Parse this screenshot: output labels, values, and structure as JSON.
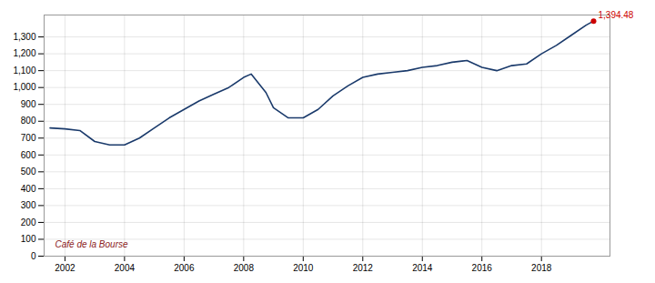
{
  "chart_data": {
    "type": "line",
    "x": [
      2001.5,
      2002.0,
      2002.5,
      2003.0,
      2003.5,
      2004.0,
      2004.5,
      2005.0,
      2005.5,
      2006.0,
      2006.5,
      2007.0,
      2007.5,
      2008.0,
      2008.25,
      2008.75,
      2009.0,
      2009.5,
      2010.0,
      2010.5,
      2011.0,
      2011.5,
      2012.0,
      2012.5,
      2013.0,
      2013.5,
      2014.0,
      2014.5,
      2015.0,
      2015.5,
      2016.0,
      2016.5,
      2017.0,
      2017.5,
      2018.0,
      2018.5,
      2019.0,
      2019.5,
      2019.75
    ],
    "values": [
      760,
      755,
      745,
      680,
      660,
      660,
      700,
      760,
      820,
      870,
      920,
      960,
      1000,
      1060,
      1080,
      970,
      880,
      820,
      820,
      870,
      950,
      1010,
      1060,
      1080,
      1090,
      1100,
      1120,
      1130,
      1150,
      1160,
      1120,
      1100,
      1130,
      1140,
      1200,
      1250,
      1310,
      1370,
      1394
    ],
    "color": "#1a3a6b",
    "xlim": [
      2001.3,
      2020.3
    ],
    "xticks": [
      2002,
      2004,
      2006,
      2008,
      2010,
      2012,
      2014,
      2016,
      2018
    ],
    "ylim": [
      0,
      1430
    ],
    "yticks": [
      0,
      100,
      200,
      300,
      400,
      500,
      600,
      700,
      800,
      900,
      {
        "value": 1000,
        "label": "1,000"
      },
      {
        "value": 1100,
        "label": "1,100"
      },
      {
        "value": 1200,
        "label": "1,200"
      },
      {
        "value": 1300,
        "label": "1,300"
      }
    ],
    "grid": true,
    "annotations": [
      {
        "text": "1,394.48",
        "x": 2019.75,
        "y": 1394,
        "color": "#cc0000",
        "marker": "dot"
      },
      {
        "text": "Café de la Bourse",
        "color": "#8b2020"
      }
    ]
  }
}
